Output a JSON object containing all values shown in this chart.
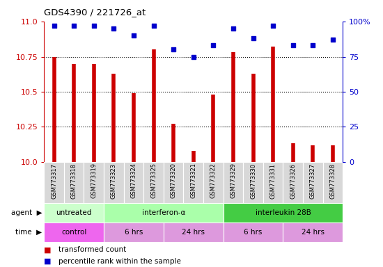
{
  "title": "GDS4390 / 221726_at",
  "samples": [
    "GSM773317",
    "GSM773318",
    "GSM773319",
    "GSM773323",
    "GSM773324",
    "GSM773325",
    "GSM773320",
    "GSM773321",
    "GSM773322",
    "GSM773329",
    "GSM773330",
    "GSM773331",
    "GSM773326",
    "GSM773327",
    "GSM773328"
  ],
  "transformed_count": [
    10.75,
    10.7,
    10.7,
    10.63,
    10.49,
    10.8,
    10.27,
    10.08,
    10.48,
    10.78,
    10.63,
    10.82,
    10.13,
    10.12,
    10.12
  ],
  "percentile_rank": [
    97,
    97,
    97,
    95,
    90,
    97,
    80,
    75,
    83,
    95,
    88,
    97,
    83,
    83,
    87
  ],
  "ylim_left": [
    10.0,
    11.0
  ],
  "ylim_right": [
    0,
    100
  ],
  "yticks_left": [
    10.0,
    10.25,
    10.5,
    10.75,
    11.0
  ],
  "yticks_right": [
    0,
    25,
    50,
    75,
    100
  ],
  "agent_groups": [
    {
      "label": "untreated",
      "start": 0,
      "end": 3,
      "color": "#ccffcc"
    },
    {
      "label": "interferon-α",
      "start": 3,
      "end": 9,
      "color": "#aaffaa"
    },
    {
      "label": "interleukin 28B",
      "start": 9,
      "end": 15,
      "color": "#44cc44"
    }
  ],
  "time_groups": [
    {
      "label": "control",
      "start": 0,
      "end": 3,
      "color": "#ee66ee"
    },
    {
      "label": "6 hrs",
      "start": 3,
      "end": 6,
      "color": "#dd99dd"
    },
    {
      "label": "24 hrs",
      "start": 6,
      "end": 9,
      "color": "#dd99dd"
    },
    {
      "label": "6 hrs",
      "start": 9,
      "end": 12,
      "color": "#dd99dd"
    },
    {
      "label": "24 hrs",
      "start": 12,
      "end": 15,
      "color": "#dd99dd"
    }
  ],
  "bar_color": "#cc0000",
  "dot_color": "#0000cc",
  "bg_color": "#ffffff",
  "spine_left_color": "#cc0000",
  "spine_right_color": "#0000cc",
  "grid_color": "#000000",
  "tick_label_left_color": "#cc0000",
  "tick_label_right_color": "#0000cc"
}
